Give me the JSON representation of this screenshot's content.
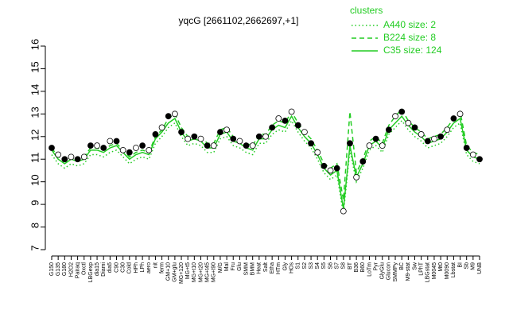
{
  "chart_data": {
    "type": "line",
    "title": "yqcG [2661102,2662697,+1]",
    "legend_title": "clusters",
    "legend_position": "top-right",
    "categories": [
      "G150",
      "G135",
      "G180",
      "H2O2",
      "Pairaq",
      "Oxctl",
      "LBGexp",
      "dia15",
      "Diami",
      "dia5",
      "C90",
      "C30",
      "Cold",
      "HPh",
      "LPh",
      "aero",
      "nit",
      "ferm",
      "GM+10",
      "GM+glu",
      "MG+120",
      "MG+t5",
      "MG+t10",
      "MG+t20",
      "MG+t45",
      "MG+t90",
      "M/G",
      "Mal",
      "Fru",
      "Glu",
      "SMM",
      "BMM",
      "Heat",
      "Salt",
      "Etha",
      "HTm",
      "Gly",
      "HOs",
      "S1",
      "S2",
      "S3",
      "S4",
      "S5",
      "S6",
      "S7",
      "S8",
      "BT",
      "B36",
      "B60",
      "LoTm",
      "Pyr",
      "GlyGlu",
      "Glucon",
      "SMMPy",
      "BC",
      "M9-stat",
      "Sw",
      "LPhT",
      "LBGstat",
      "M0045",
      "Mt0",
      "M0090",
      "Lbstat",
      "BI",
      "Sb",
      "M9",
      "UNB"
    ],
    "series": [
      {
        "name": "A440 size: 2",
        "color": "#22cc22",
        "dash": "dotted",
        "values": [
          11.2,
          10.8,
          10.6,
          10.8,
          10.7,
          10.8,
          11.2,
          11.2,
          11.1,
          11.3,
          11.4,
          11.1,
          10.8,
          11.0,
          11.1,
          11.0,
          11.7,
          12.0,
          12.4,
          12.6,
          12.0,
          11.6,
          11.7,
          11.6,
          11.3,
          11.3,
          11.9,
          12.0,
          11.6,
          11.5,
          11.3,
          11.2,
          11.7,
          11.7,
          12.1,
          12.3,
          12.2,
          12.7,
          12.2,
          11.8,
          11.5,
          11.0,
          10.4,
          10.1,
          10.3,
          8.6,
          11.4,
          10.0,
          10.6,
          11.4,
          11.6,
          11.3,
          12.1,
          12.4,
          12.7,
          12.3,
          12.0,
          11.8,
          11.5,
          11.6,
          11.7,
          12.0,
          12.4,
          12.6,
          11.2,
          10.9,
          10.8
        ]
      },
      {
        "name": "B224 size: 8",
        "color": "#22cc22",
        "dash": "dashed",
        "values": [
          11.5,
          11.1,
          10.9,
          11.1,
          11.0,
          11.1,
          11.5,
          11.5,
          11.4,
          11.6,
          11.7,
          11.4,
          11.1,
          11.3,
          11.4,
          11.3,
          12.0,
          12.3,
          12.8,
          13.0,
          12.4,
          12.0,
          12.1,
          12.0,
          11.7,
          11.7,
          12.3,
          12.4,
          12.0,
          11.9,
          11.7,
          11.6,
          12.1,
          12.1,
          12.5,
          12.7,
          12.6,
          13.1,
          12.6,
          12.2,
          11.9,
          11.4,
          10.8,
          10.6,
          10.8,
          9.2,
          13.1,
          10.4,
          11.0,
          11.8,
          12.0,
          11.7,
          12.5,
          12.9,
          13.2,
          12.7,
          12.4,
          12.2,
          11.9,
          12.0,
          12.1,
          12.4,
          12.8,
          13.1,
          11.6,
          11.3,
          11.2
        ]
      },
      {
        "name": "C35 size: 124",
        "color": "#22cc22",
        "dash": "solid",
        "values": [
          11.4,
          11.0,
          10.8,
          11.0,
          10.9,
          11.0,
          11.4,
          11.4,
          11.3,
          11.5,
          11.6,
          11.3,
          11.0,
          11.2,
          11.3,
          11.2,
          11.9,
          12.2,
          12.6,
          12.8,
          12.2,
          11.8,
          11.9,
          11.8,
          11.5,
          11.5,
          12.1,
          12.2,
          11.8,
          11.7,
          11.5,
          11.4,
          11.9,
          11.9,
          12.3,
          12.5,
          12.4,
          12.9,
          12.4,
          12.0,
          11.7,
          11.2,
          10.6,
          10.3,
          10.5,
          8.8,
          11.6,
          10.2,
          10.8,
          11.6,
          11.8,
          11.5,
          12.3,
          12.6,
          12.9,
          12.5,
          12.2,
          12.0,
          11.7,
          11.8,
          11.9,
          12.2,
          12.6,
          12.8,
          11.4,
          11.1,
          11.0
        ]
      }
    ],
    "markers": {
      "color": "#000000",
      "values": [
        11.5,
        11.2,
        11.0,
        11.1,
        11.0,
        11.1,
        11.6,
        11.6,
        11.5,
        11.8,
        11.8,
        11.4,
        11.3,
        11.5,
        11.6,
        11.4,
        12.1,
        12.4,
        12.9,
        13.0,
        12.2,
        11.9,
        12.0,
        11.9,
        11.6,
        11.6,
        12.2,
        12.3,
        11.9,
        11.8,
        11.6,
        11.6,
        12.0,
        12.0,
        12.4,
        12.8,
        12.7,
        13.1,
        12.5,
        12.2,
        11.7,
        11.3,
        10.7,
        10.5,
        10.6,
        8.7,
        11.7,
        10.2,
        10.9,
        11.6,
        11.9,
        11.6,
        12.3,
        12.9,
        13.1,
        12.6,
        12.4,
        12.1,
        11.8,
        11.9,
        12.0,
        12.3,
        12.8,
        13.0,
        11.5,
        11.2,
        11.0
      ]
    },
    "ylim": [
      7,
      16
    ],
    "yticks": [
      7,
      8,
      9,
      10,
      11,
      12,
      13,
      14,
      15,
      16
    ],
    "grid": false
  }
}
